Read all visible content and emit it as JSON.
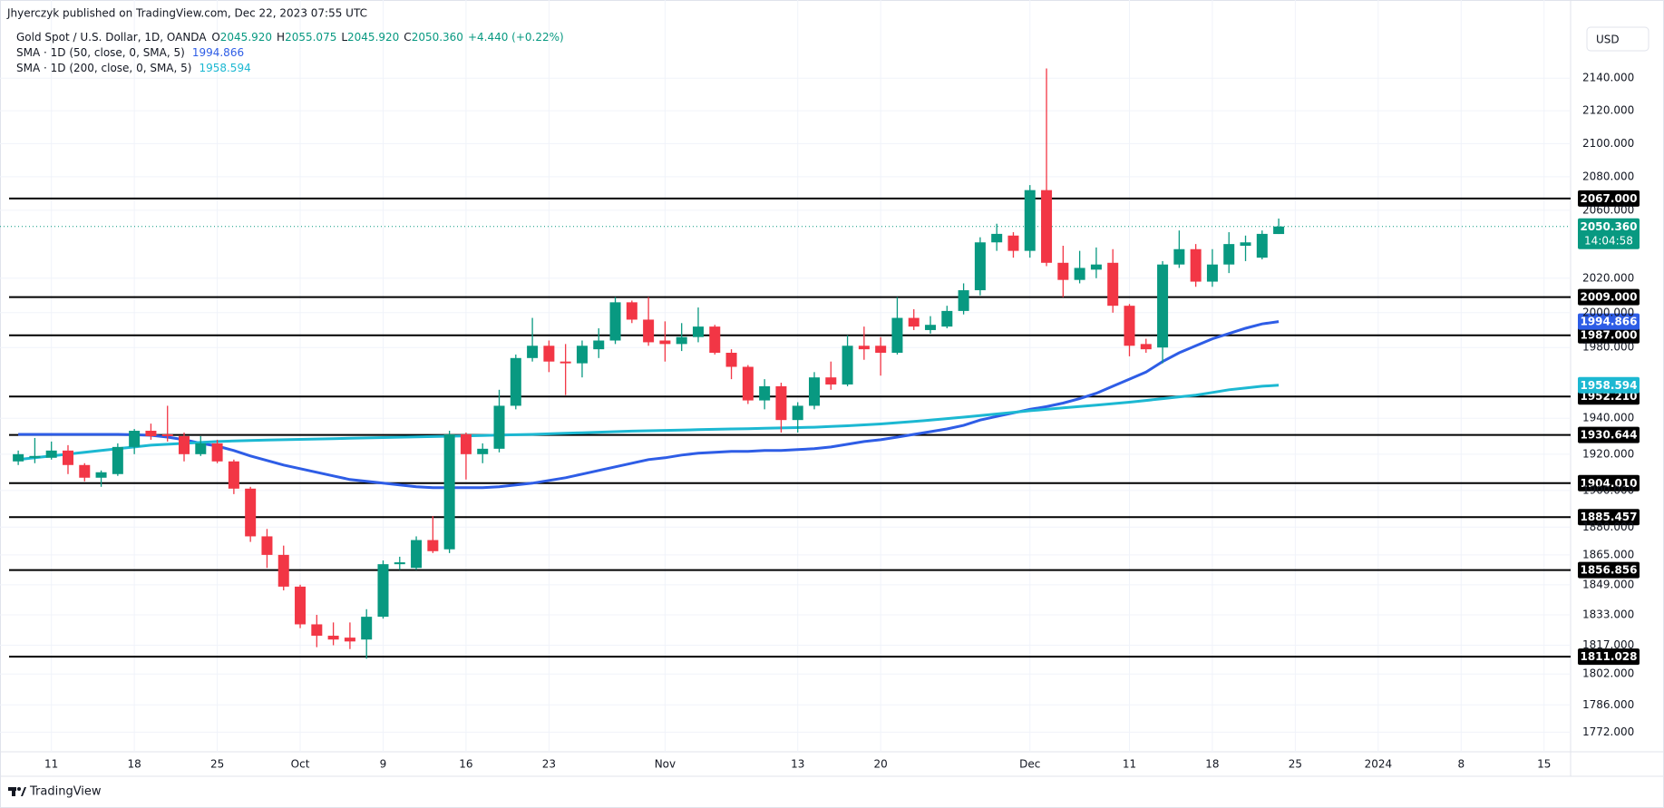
{
  "chart_data": {
    "type": "candlestick",
    "published": "Jhyerczyk published on TradingView.com, Dec 22, 2023 07:55 UTC",
    "symbol": "Gold Spot / U.S. Dollar, 1D, OANDA",
    "ohlc_legend": [
      {
        "key": "O",
        "label": "2045.920"
      },
      {
        "key": "H",
        "label": "2055.075"
      },
      {
        "key": "L",
        "label": "2045.920"
      },
      {
        "key": "C",
        "label": "2050.360"
      }
    ],
    "change": "+4.440 (+0.22%)",
    "currency": "USD",
    "brand": "TradingView",
    "up_color": "#089981",
    "down_color": "#f23645",
    "log_scale": true,
    "grid": true,
    "open": [
      1916,
      1918,
      1918,
      1922,
      1914,
      1907,
      1909,
      1924,
      1933,
      1931,
      1930,
      1920,
      1926,
      1916,
      1901,
      1875,
      1865,
      1848,
      1828,
      1822,
      1821,
      1820,
      1832,
      1860,
      1858,
      1873,
      1868,
      1931,
      1920,
      1923,
      1947,
      1974,
      1981,
      1972,
      1971,
      1979,
      1984,
      2006,
      1996,
      1984,
      1982,
      1986,
      1992,
      1977,
      1969,
      1950,
      1958,
      1939,
      1947,
      1963,
      1959,
      1981,
      1981,
      1977,
      1997,
      1990,
      1992,
      2001,
      2013,
      2041,
      2045,
      2036,
      2072,
      2029,
      2019,
      2025,
      2029,
      2004,
      1982,
      1980,
      2028,
      2037,
      2018,
      2028,
      2039,
      2032,
      2045.92
    ],
    "high": [
      1922,
      1929,
      1927,
      1925,
      1915,
      1911,
      1926,
      1934,
      1937,
      1947,
      1932,
      1930,
      1928,
      1917,
      1902,
      1879,
      1870,
      1849,
      1833,
      1829,
      1829,
      1836,
      1862,
      1864,
      1875,
      1886,
      1933,
      1932,
      1926,
      1956,
      1976,
      1997,
      1984,
      1982,
      1984,
      1991,
      2009,
      2007,
      2009,
      1995,
      1994,
      2003,
      1993,
      1979,
      1970,
      1962,
      1960,
      1949,
      1966,
      1972,
      1987,
      1992,
      1986,
      2009,
      2002,
      1998,
      2004,
      2017,
      2044,
      2052,
      2047,
      2075,
      2146,
      2039,
      2036,
      2038,
      2037,
      2005,
      1985,
      2030,
      2048,
      2040,
      2037,
      2047,
      2045,
      2048,
      2055.075
    ],
    "low": [
      1914,
      1915,
      1917,
      1909,
      1905,
      1902,
      1908,
      1920,
      1928,
      1927,
      1916,
      1919,
      1915,
      1898,
      1872,
      1858,
      1846,
      1826,
      1816,
      1817,
      1815,
      1810,
      1831,
      1857,
      1857,
      1866,
      1866,
      1906,
      1915,
      1921,
      1945,
      1972,
      1966,
      1953,
      1963,
      1974,
      1982,
      1994,
      1981,
      1972,
      1978,
      1983,
      1976,
      1962,
      1948,
      1945,
      1932,
      1932,
      1945,
      1956,
      1958,
      1973,
      1964,
      1976,
      1990,
      1988,
      1991,
      1999,
      2010,
      2036,
      2032,
      2032,
      2027,
      2009,
      2017,
      2020,
      2000,
      1975,
      1977,
      1971,
      2026,
      2015,
      2015,
      2023,
      2030,
      2031,
      2045.92
    ],
    "close": [
      1920,
      1919,
      1922,
      1914,
      1907,
      1910,
      1924,
      1933,
      1930,
      1930,
      1920,
      1926,
      1916,
      1901,
      1875,
      1865,
      1848,
      1828,
      1822,
      1820,
      1819,
      1832,
      1860,
      1861,
      1873,
      1867,
      1931,
      1920,
      1923,
      1947,
      1974,
      1981,
      1972,
      1971,
      1981,
      1984,
      2006,
      1996,
      1983,
      1982,
      1986,
      1992,
      1977,
      1969,
      1950,
      1958,
      1939,
      1947,
      1963,
      1959,
      1981,
      1979,
      1977,
      1997,
      1992,
      1993,
      2001,
      2013,
      2041,
      2046,
      2036,
      2072,
      2029,
      2019,
      2026,
      2028,
      2004,
      1981,
      1979,
      2028,
      2037,
      2018,
      2028,
      2040,
      2041,
      2046,
      2050.36
    ],
    "series": [
      {
        "name": "SMA · 1D (50, close, 0, SMA, 5)",
        "color": "#2e5de6",
        "values": [
          1931,
          1931,
          1931,
          1931,
          1931,
          1931,
          1931,
          1930.8,
          1930.5,
          1929.5,
          1928,
          1926,
          1924.5,
          1922,
          1919,
          1916.5,
          1914,
          1912,
          1910,
          1908,
          1906,
          1905,
          1904,
          1903,
          1902,
          1901.5,
          1901.5,
          1901.5,
          1901.5,
          1902,
          1903,
          1904,
          1905.5,
          1907,
          1909,
          1911,
          1913,
          1915,
          1917,
          1918,
          1919.5,
          1920.5,
          1921,
          1921.5,
          1921.5,
          1922,
          1922,
          1922.5,
          1923,
          1924,
          1925.5,
          1927,
          1928,
          1929.5,
          1931,
          1932.5,
          1934,
          1936,
          1939,
          1941,
          1943,
          1945,
          1946.5,
          1948.5,
          1951,
          1954,
          1958,
          1962,
          1966,
          1972,
          1977,
          1981,
          1985,
          1988,
          1991,
          1993.5,
          1994.866
        ]
      },
      {
        "name": "SMA · 1D (200, close, 0, SMA, 5)",
        "color": "#1cb8d2",
        "values": [
          1917,
          1918,
          1919,
          1920,
          1921,
          1922,
          1923,
          1924,
          1925,
          1925.5,
          1926,
          1926.5,
          1927,
          1927.3,
          1927.6,
          1927.8,
          1928,
          1928.2,
          1928.4,
          1928.6,
          1928.8,
          1929,
          1929.2,
          1929.4,
          1929.6,
          1929.8,
          1930,
          1930.2,
          1930.4,
          1930.6,
          1930.8,
          1931,
          1931.3,
          1931.6,
          1931.9,
          1932.2,
          1932.5,
          1932.8,
          1933,
          1933.2,
          1933.4,
          1933.6,
          1933.8,
          1934,
          1934.2,
          1934.4,
          1934.6,
          1934.8,
          1935,
          1935.4,
          1935.8,
          1936.3,
          1936.8,
          1937.5,
          1938.2,
          1939,
          1939.8,
          1940.6,
          1941.5,
          1942.4,
          1943.3,
          1944.2,
          1945,
          1945.8,
          1946.6,
          1947.4,
          1948.2,
          1949,
          1950,
          1951,
          1952,
          1953,
          1954.5,
          1956,
          1957,
          1958,
          1958.594
        ]
      }
    ],
    "levels": [
      {
        "value": 2067,
        "label": "2067.000"
      },
      {
        "value": 2009,
        "label": "2009.000"
      },
      {
        "value": 1987,
        "label": "1987.000"
      },
      {
        "value": 1952.21,
        "label": "1952.210"
      },
      {
        "value": 1930.644,
        "label": "1930.644"
      },
      {
        "value": 1904.01,
        "label": "1904.010"
      },
      {
        "value": 1885.457,
        "label": "1885.457"
      },
      {
        "value": 1856.856,
        "label": "1856.856"
      },
      {
        "value": 1811.028,
        "label": "1811.028"
      }
    ],
    "last_price": {
      "value": 2050.36,
      "label": "2050.360",
      "countdown": "14:04:58"
    },
    "xlim": [
      -1.1,
      93.6
    ],
    "xticks": [
      {
        "value": 2,
        "label": "11"
      },
      {
        "value": 7,
        "label": "18"
      },
      {
        "value": 12,
        "label": "25"
      },
      {
        "value": 17,
        "label": "Oct"
      },
      {
        "value": 22,
        "label": "9"
      },
      {
        "value": 27,
        "label": "16"
      },
      {
        "value": 32,
        "label": "23"
      },
      {
        "value": 39,
        "label": "Nov"
      },
      {
        "value": 47,
        "label": "13"
      },
      {
        "value": 52,
        "label": "20"
      },
      {
        "value": 61,
        "label": "Dec"
      },
      {
        "value": 67,
        "label": "11"
      },
      {
        "value": 72,
        "label": "18"
      },
      {
        "value": 77,
        "label": "25"
      },
      {
        "value": 82,
        "label": "2024"
      },
      {
        "value": 87,
        "label": "8"
      },
      {
        "value": 92,
        "label": "15"
      }
    ],
    "ylim": [
      1762,
      2174
    ],
    "yticks": [
      {
        "value": 2140,
        "label": "2140.000"
      },
      {
        "value": 2120,
        "label": "2120.000"
      },
      {
        "value": 2100,
        "label": "2100.000"
      },
      {
        "value": 2080,
        "label": "2080.000"
      },
      {
        "value": 2060,
        "label": "2060.000"
      },
      {
        "value": 2020,
        "label": "2020.000"
      },
      {
        "value": 2000,
        "label": "2000.000"
      },
      {
        "value": 1980,
        "label": "1980.000"
      },
      {
        "value": 1940,
        "label": "1940.000"
      },
      {
        "value": 1920,
        "label": "1920.000"
      },
      {
        "value": 1900,
        "label": "1900.000"
      },
      {
        "value": 1880,
        "label": "1880.000"
      },
      {
        "value": 1865,
        "label": "1865.000"
      },
      {
        "value": 1849,
        "label": "1849.000"
      },
      {
        "value": 1833,
        "label": "1833.000"
      },
      {
        "value": 1817,
        "label": "1817.000"
      },
      {
        "value": 1802,
        "label": "1802.000"
      },
      {
        "value": 1786,
        "label": "1786.000"
      },
      {
        "value": 1772,
        "label": "1772.000"
      }
    ]
  }
}
